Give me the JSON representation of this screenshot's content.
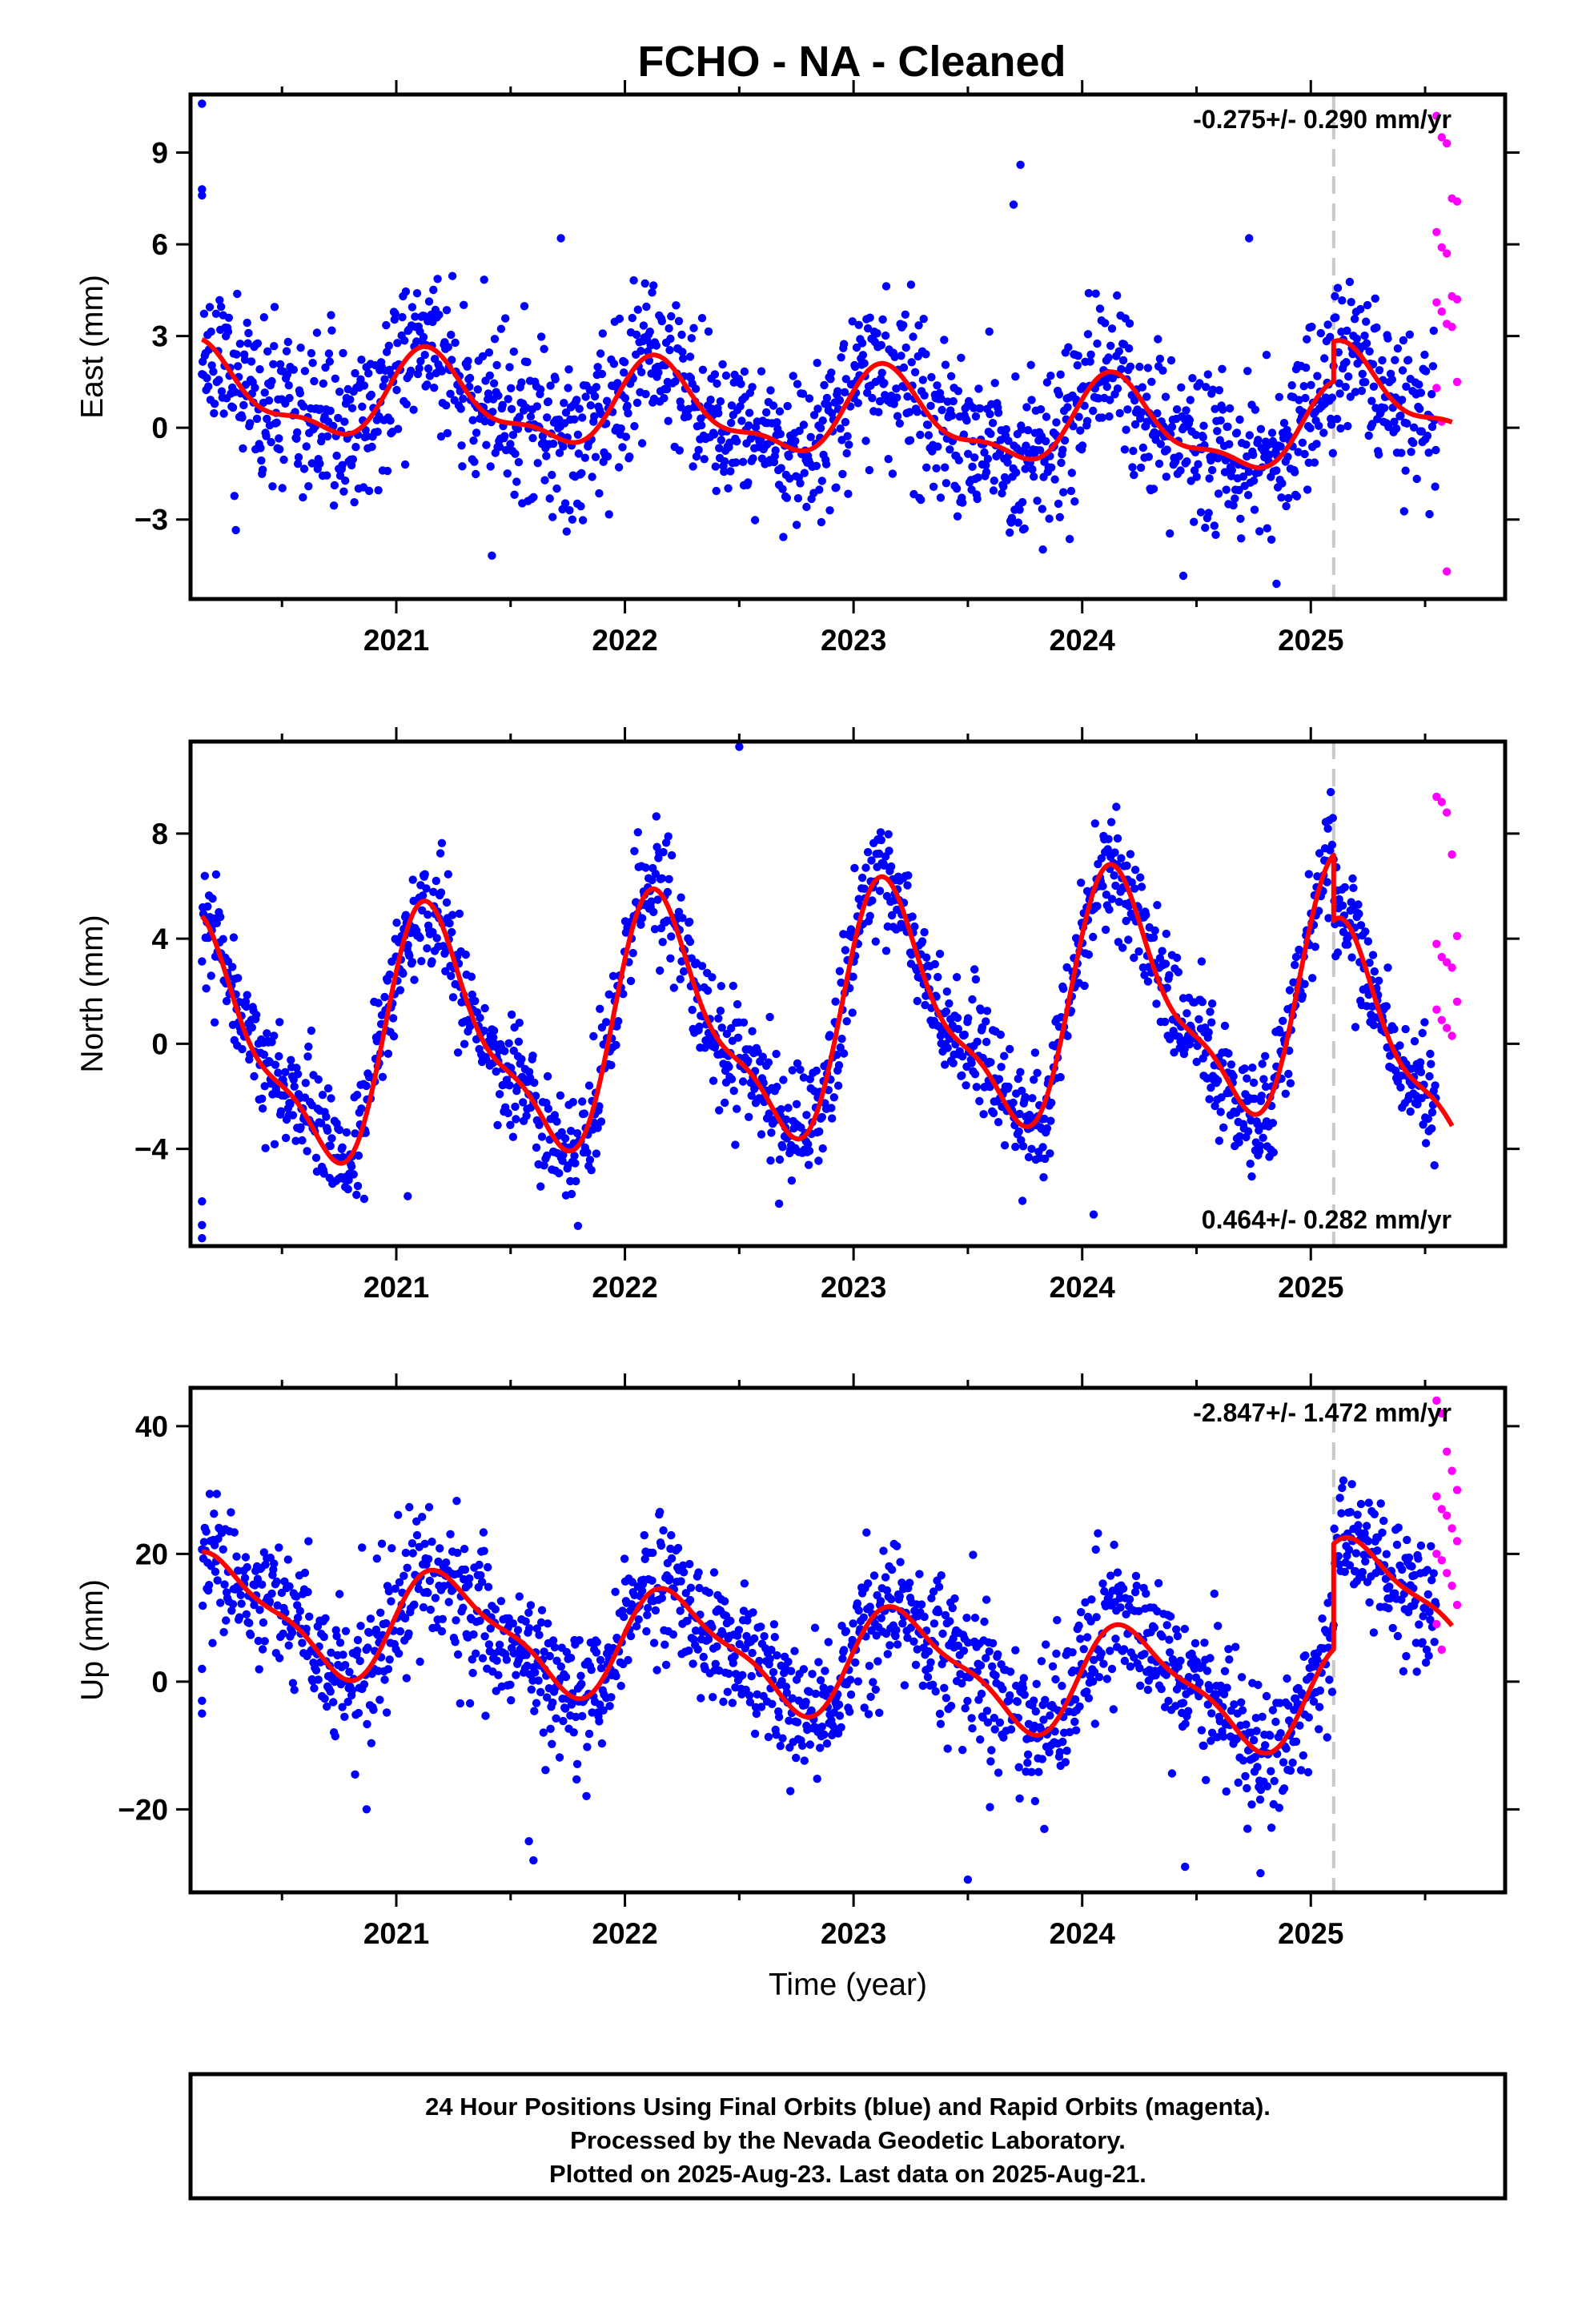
{
  "title": "FCHO  - NA - Cleaned",
  "footer": {
    "lines": [
      "24 Hour Positions Using Final Orbits (blue) and Rapid Orbits (magenta).",
      "Processed by the Nevada Geodetic Laboratory.",
      "Plotted on 2025-Aug-23. Last data on 2025-Aug-21."
    ]
  },
  "colors": {
    "final_orbits": "#0000ff",
    "rapid_orbits": "#ff00ff",
    "model": "#ff0000",
    "break_line": "#c8c8c8",
    "frame": "#000000"
  },
  "chart_data": [
    {
      "type": "scatter",
      "name": "east",
      "ylabel": "East (mm)",
      "xlabel": "",
      "xlim": [
        2020.1,
        2025.85
      ],
      "ylim": [
        -5.6,
        10.9
      ],
      "xticks": [
        2021,
        2022,
        2023,
        2024,
        2025
      ],
      "yticks": [
        -3,
        0,
        3,
        6,
        9
      ],
      "ytick_labels": [
        "−3",
        "0",
        "3",
        "6",
        "9"
      ],
      "rate_text": "-0.275+/- 0.290 mm/yr",
      "rate_position": "top-right",
      "break_epoch": 2025.1,
      "rapid_start": 2025.55,
      "rapid_end": 2025.64,
      "trend": {
        "rate": -0.275,
        "amp1": 1.3,
        "phase1": 0.6,
        "amp2": 0.5,
        "phase2": 0.2,
        "offset": 0.4,
        "mid": 2022.9,
        "step": 1.3
      },
      "rapid_values": [
        10.2,
        9.5,
        9.3,
        7.5,
        7.4,
        6.4,
        5.9,
        5.7,
        4.3,
        4.2,
        4.1,
        3.8,
        3.4,
        3.3,
        1.5,
        1.3,
        0.2,
        -4.7
      ],
      "outliers": [
        [
          2020.15,
          10.6
        ],
        [
          2020.15,
          7.8
        ],
        [
          2020.15,
          7.6
        ],
        [
          2023.73,
          8.6
        ],
        [
          2021.72,
          6.2
        ],
        [
          2023.7,
          7.3
        ],
        [
          2024.73,
          6.2
        ],
        [
          2024.85,
          -5.1
        ]
      ],
      "noise": 1.3,
      "n_points": 1750,
      "seed": 11
    },
    {
      "type": "scatter",
      "name": "north",
      "ylabel": "North (mm)",
      "xlabel": "",
      "xlim": [
        2020.1,
        2025.85
      ],
      "ylim": [
        -7.7,
        11.5
      ],
      "xticks": [
        2021,
        2022,
        2023,
        2024,
        2025
      ],
      "yticks": [
        -4,
        0,
        4,
        8
      ],
      "ytick_labels": [
        "−4",
        "0",
        "4",
        "8"
      ],
      "rate_text": "0.464+/- 0.282 mm/yr",
      "rate_position": "bottom-right",
      "break_epoch": 2025.1,
      "rapid_start": 2025.55,
      "rapid_end": 2025.64,
      "trend": {
        "rate": 0.464,
        "amp1": 4.3,
        "phase1": 0.5,
        "amp2": 1.4,
        "phase2": 0.5,
        "offset": 0.9,
        "mid": 2022.9,
        "step": -2.5
      },
      "rapid_values": [
        9.4,
        9.2,
        8.8,
        7.2,
        4.1,
        3.8,
        3.3,
        3.1,
        2.9,
        1.6,
        1.3,
        0.9,
        0.6,
        0.3
      ],
      "outliers": [
        [
          2020.15,
          -6.0
        ],
        [
          2020.15,
          -6.9
        ],
        [
          2020.15,
          -7.4
        ],
        [
          2022.5,
          11.3
        ],
        [
          2024.05,
          -6.5
        ],
        [
          2021.05,
          -5.8
        ]
      ],
      "noise": 1.1,
      "n_points": 1750,
      "seed": 23
    },
    {
      "type": "scatter",
      "name": "up",
      "ylabel": "Up (mm)",
      "xlabel": "Time (year)",
      "xlim": [
        2020.1,
        2025.85
      ],
      "ylim": [
        -33,
        46
      ],
      "xticks": [
        2021,
        2022,
        2023,
        2024,
        2025
      ],
      "yticks": [
        -20,
        0,
        20,
        40
      ],
      "ytick_labels": [
        "−20",
        "0",
        "20",
        "40"
      ],
      "rate_text": "-2.847+/- 1.472 mm/yr",
      "rate_position": "top-right",
      "break_epoch": 2025.1,
      "rapid_start": 2025.55,
      "rapid_end": 2025.64,
      "trend": {
        "rate": -2.847,
        "amp1": 8.0,
        "phase1": 0.1,
        "amp2": 2.5,
        "phase2": 0.3,
        "offset": 3.5,
        "mid": 2022.9,
        "step": 16.5
      },
      "rapid_values": [
        44,
        42,
        36,
        33,
        30,
        29,
        27,
        26,
        24,
        22,
        20,
        19,
        17,
        15,
        12,
        9,
        5
      ],
      "outliers": [
        [
          2020.15,
          2.0
        ],
        [
          2020.15,
          -3.0
        ],
        [
          2020.15,
          -5.0
        ],
        [
          2021.58,
          -25
        ],
        [
          2021.6,
          -28
        ],
        [
          2023.5,
          -31
        ],
        [
          2024.78,
          -30
        ],
        [
          2024.45,
          -29
        ],
        [
          2020.87,
          -20
        ],
        [
          2020.85,
          21
        ]
      ],
      "noise": 5.5,
      "n_points": 1750,
      "seed": 37
    }
  ]
}
